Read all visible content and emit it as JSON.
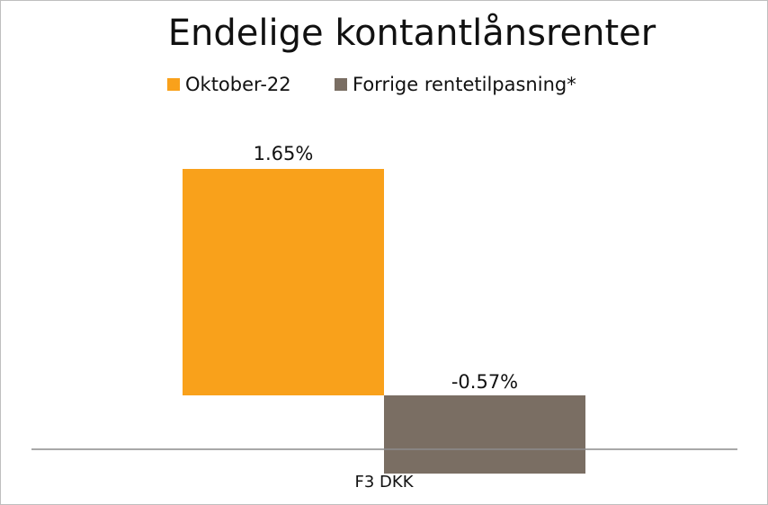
{
  "chart_data": {
    "type": "bar",
    "title": "Endelige kontantlånsrenter",
    "categories": [
      "F3 DKK"
    ],
    "series": [
      {
        "name": "Oktober-22",
        "values": [
          1.65
        ],
        "label": "1.65%",
        "color": "#F9A11B"
      },
      {
        "name": "Forrige rentetilpasning*",
        "values": [
          -0.57
        ],
        "label": "-0.57%",
        "color": "#7A6E63"
      }
    ],
    "xlabel": "",
    "ylabel": "",
    "ylim": [
      -0.57,
      1.65
    ],
    "grid": false,
    "legend_position": "top"
  }
}
